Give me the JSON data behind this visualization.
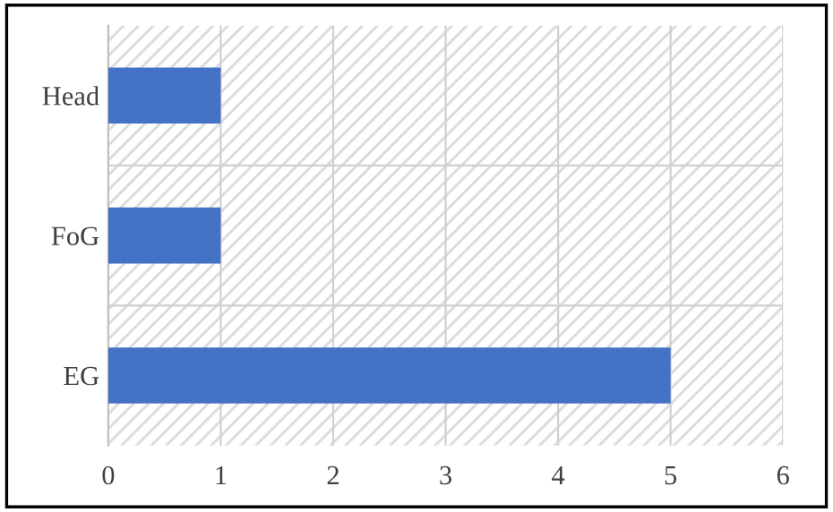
{
  "chart_data": {
    "type": "bar",
    "orientation": "horizontal",
    "categories": [
      "Head",
      "FoG",
      "EG"
    ],
    "values": [
      1,
      1,
      5
    ],
    "color": "#4472c4",
    "xlim": [
      0,
      6
    ],
    "xticks": [
      0,
      1,
      2,
      3,
      4,
      5,
      6
    ],
    "grid": true
  }
}
